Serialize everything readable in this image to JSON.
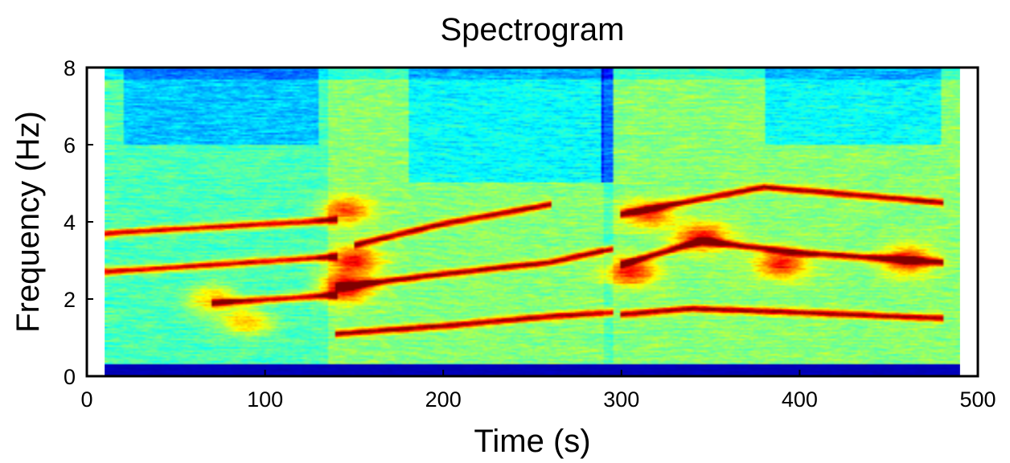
{
  "chart_data": {
    "type": "heatmap",
    "title": "Spectrogram",
    "xlabel": "Time (s)",
    "ylabel": "Frequency (Hz)",
    "xlim": [
      0,
      500
    ],
    "ylim": [
      0,
      8
    ],
    "x_ticks": [
      "0",
      "100",
      "200",
      "300",
      "400",
      "500"
    ],
    "y_ticks": [
      "0",
      "2",
      "4",
      "6",
      "8"
    ],
    "data_x_extent": [
      10,
      490
    ],
    "colormap": "jet",
    "colors": {
      "low": "#00008f",
      "mid": "#7fff7f",
      "high": "#8f0000"
    },
    "grid": false,
    "legend": "none",
    "harmonic_tracks": [
      {
        "points": [
          [
            70,
            1.9
          ],
          [
            140,
            2.1
          ]
        ]
      },
      {
        "points": [
          [
            140,
            2.3
          ],
          [
            200,
            2.65
          ],
          [
            260,
            2.95
          ],
          [
            295,
            3.3
          ]
        ]
      },
      {
        "points": [
          [
            140,
            1.1
          ],
          [
            200,
            1.3
          ],
          [
            260,
            1.55
          ],
          [
            295,
            1.65
          ]
        ]
      },
      {
        "points": [
          [
            150,
            3.4
          ],
          [
            200,
            3.95
          ],
          [
            260,
            4.45
          ]
        ]
      },
      {
        "points": [
          [
            300,
            1.6
          ],
          [
            340,
            1.75
          ],
          [
            400,
            1.65
          ],
          [
            480,
            1.5
          ]
        ]
      },
      {
        "points": [
          [
            300,
            2.9
          ],
          [
            345,
            3.5
          ],
          [
            400,
            3.2
          ],
          [
            480,
            2.95
          ]
        ]
      },
      {
        "points": [
          [
            300,
            4.2
          ],
          [
            380,
            4.9
          ],
          [
            480,
            4.5
          ]
        ]
      },
      {
        "points": [
          [
            10,
            2.7
          ],
          [
            140,
            3.1
          ]
        ]
      },
      {
        "points": [
          [
            10,
            3.7
          ],
          [
            140,
            4.05
          ]
        ]
      }
    ],
    "energy_blobs": [
      {
        "t": 145,
        "f": 2.3,
        "level": 1.0
      },
      {
        "t": 150,
        "f": 3.0,
        "level": 0.85
      },
      {
        "t": 145,
        "f": 4.3,
        "level": 0.7
      },
      {
        "t": 305,
        "f": 2.7,
        "level": 0.85
      },
      {
        "t": 315,
        "f": 4.2,
        "level": 0.7
      },
      {
        "t": 345,
        "f": 3.6,
        "level": 0.9
      },
      {
        "t": 390,
        "f": 2.9,
        "level": 0.85
      },
      {
        "t": 460,
        "f": 3.0,
        "level": 0.85
      },
      {
        "t": 70,
        "f": 2.0,
        "level": 0.55
      },
      {
        "t": 90,
        "f": 1.4,
        "level": 0.55
      }
    ],
    "low_energy_regions": [
      {
        "t": [
          180,
          290
        ],
        "f": [
          5.0,
          8.0
        ]
      },
      {
        "t": [
          20,
          130
        ],
        "f": [
          6.0,
          8.0
        ]
      },
      {
        "t": [
          380,
          480
        ],
        "f": [
          6.0,
          8.0
        ]
      }
    ]
  }
}
